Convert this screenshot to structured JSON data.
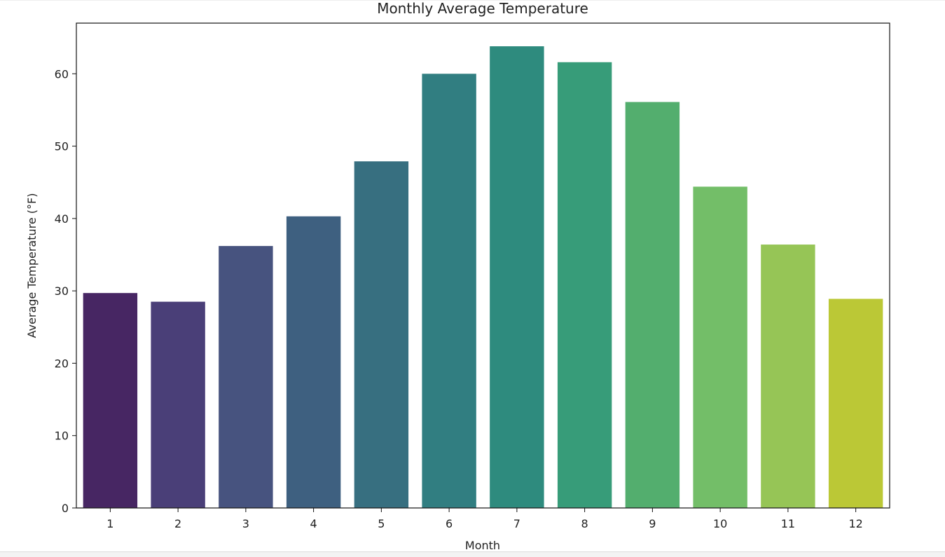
{
  "chart_data": {
    "type": "bar",
    "title": "Monthly Average Temperature",
    "xlabel": "Month",
    "ylabel": "Average Temperature (°F)",
    "categories": [
      "1",
      "2",
      "3",
      "4",
      "5",
      "6",
      "7",
      "8",
      "9",
      "10",
      "11",
      "12"
    ],
    "values": [
      29.7,
      28.5,
      36.2,
      40.3,
      47.9,
      60.0,
      63.8,
      61.6,
      56.1,
      44.4,
      36.4,
      28.9
    ],
    "yticks": [
      0,
      10,
      20,
      30,
      40,
      50,
      60
    ],
    "ylim": [
      0,
      67
    ],
    "grid": false,
    "colors": [
      "#472663",
      "#4a3f78",
      "#47537f",
      "#3e6080",
      "#376f80",
      "#317e81",
      "#2e8b7e",
      "#379c79",
      "#53ae6e",
      "#73be68",
      "#96c556",
      "#bbc836"
    ]
  }
}
